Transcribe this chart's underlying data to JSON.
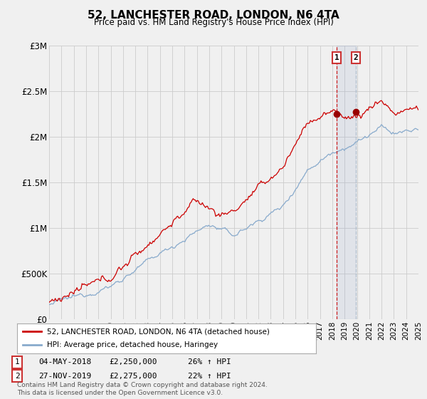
{
  "title": "52, LANCHESTER ROAD, LONDON, N6 4TA",
  "subtitle": "Price paid vs. HM Land Registry's House Price Index (HPI)",
  "ylabel_ticks": [
    "£0",
    "£500K",
    "£1M",
    "£1.5M",
    "£2M",
    "£2.5M",
    "£3M"
  ],
  "ytick_values": [
    0,
    500000,
    1000000,
    1500000,
    2000000,
    2500000,
    3000000
  ],
  "ylim": [
    0,
    3000000
  ],
  "legend_line1": "52, LANCHESTER ROAD, LONDON, N6 4TA (detached house)",
  "legend_line2": "HPI: Average price, detached house, Haringey",
  "transaction1_date": "04-MAY-2018",
  "transaction1_price": "£2,250,000",
  "transaction1_hpi": "26% ↑ HPI",
  "transaction2_date": "27-NOV-2019",
  "transaction2_price": "£2,275,000",
  "transaction2_hpi": "22% ↑ HPI",
  "footnote": "Contains HM Land Registry data © Crown copyright and database right 2024.\nThis data is licensed under the Open Government Licence v3.0.",
  "line_color_red": "#cc0000",
  "line_color_blue": "#88aacc",
  "vline1_color": "#cc0000",
  "vline2_color": "#aabbcc",
  "marker_color": "#990000",
  "background_color": "#f0f0f0",
  "transaction1_x": 2018.37,
  "transaction2_x": 2019.92,
  "marker1_y": 2250000,
  "marker2_y": 2275000,
  "xmin": 1995,
  "xmax": 2025
}
